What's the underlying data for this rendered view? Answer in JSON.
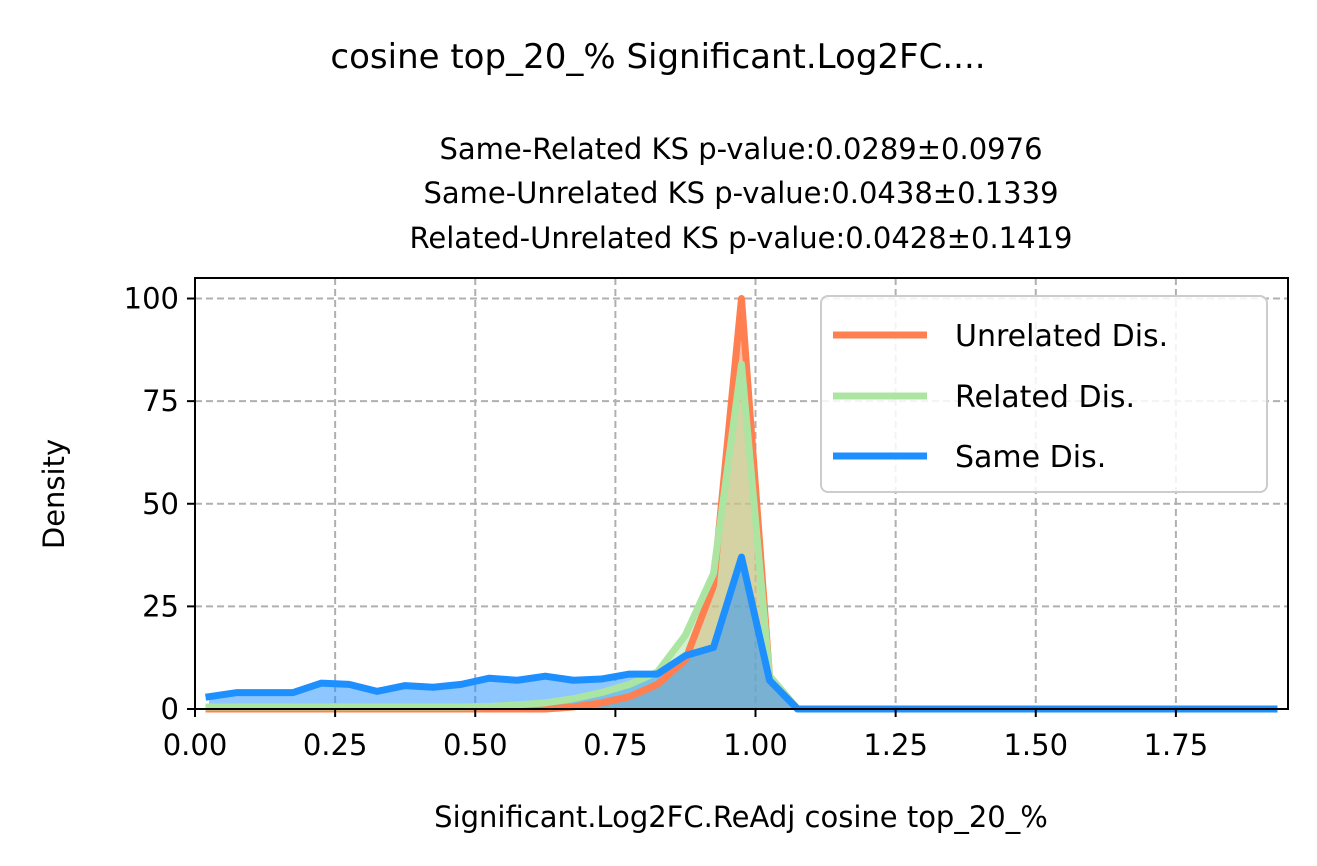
{
  "chart_data": {
    "type": "area",
    "title": "cosine top_20_% Significant.Log2FC....",
    "subtitle_lines": [
      "Same-Related KS p-value:0.0289±0.0976",
      "Same-Unrelated KS p-value:0.0438±0.1339",
      "Related-Unrelated KS p-value:0.0428±0.1419"
    ],
    "xlabel": "Significant.Log2FC.ReAdj cosine top_20_%",
    "ylabel": "Density",
    "xlim": [
      0.0,
      1.95
    ],
    "ylim": [
      0,
      105
    ],
    "xticks": [
      0.0,
      0.25,
      0.5,
      0.75,
      1.0,
      1.25,
      1.5,
      1.75
    ],
    "xtick_labels": [
      "0.00",
      "0.25",
      "0.50",
      "0.75",
      "1.00",
      "1.25",
      "1.50",
      "1.75"
    ],
    "yticks": [
      0,
      25,
      50,
      75,
      100
    ],
    "ytick_labels": [
      "0",
      "25",
      "50",
      "75",
      "100"
    ],
    "grid": true,
    "legend_position": "top-right",
    "x": [
      0.025,
      0.075,
      0.125,
      0.175,
      0.225,
      0.275,
      0.325,
      0.375,
      0.425,
      0.475,
      0.525,
      0.575,
      0.625,
      0.675,
      0.725,
      0.775,
      0.825,
      0.875,
      0.925,
      0.975,
      1.025,
      1.075,
      1.125,
      1.175,
      1.225,
      1.275,
      1.325,
      1.375,
      1.425,
      1.475,
      1.525,
      1.575,
      1.625,
      1.675,
      1.725,
      1.775,
      1.825,
      1.875,
      1.925
    ],
    "series": [
      {
        "name": "Unrelated Dis.",
        "color": "#FF7F50",
        "fill": "#FF7F50",
        "values": [
          0,
          0,
          0,
          0,
          0,
          0,
          0,
          0,
          0,
          0,
          0,
          0,
          0,
          0.5,
          1.5,
          3,
          6,
          12,
          30,
          100,
          8,
          0,
          0,
          0,
          0,
          0,
          0,
          0,
          0,
          0,
          0,
          0,
          0,
          0,
          0,
          0,
          0,
          0,
          0
        ]
      },
      {
        "name": "Related Dis.",
        "color": "#ACE5A1",
        "fill": "#ACE5A1",
        "values": [
          0.5,
          0.5,
          0.5,
          0.5,
          0.5,
          0.5,
          0.5,
          0.5,
          0.5,
          0.5,
          0.6,
          1,
          1.5,
          2.5,
          4,
          6,
          9,
          18,
          33,
          84,
          8,
          0,
          0,
          0,
          0,
          0,
          0,
          0,
          0,
          0,
          0,
          0,
          0,
          0,
          0,
          0,
          0,
          0,
          0
        ]
      },
      {
        "name": "Same Dis.",
        "color": "#1E8FFF",
        "fill": "#1E8FFF",
        "values": [
          3,
          4,
          4,
          4,
          6.3,
          6,
          4.3,
          5.7,
          5.3,
          6,
          7.5,
          7,
          8,
          7,
          7.3,
          8.5,
          8.5,
          13,
          15,
          37,
          7,
          0,
          0,
          0,
          0,
          0,
          0,
          0,
          0,
          0,
          0,
          0,
          0,
          0,
          0,
          0,
          0,
          0,
          0
        ]
      }
    ]
  }
}
